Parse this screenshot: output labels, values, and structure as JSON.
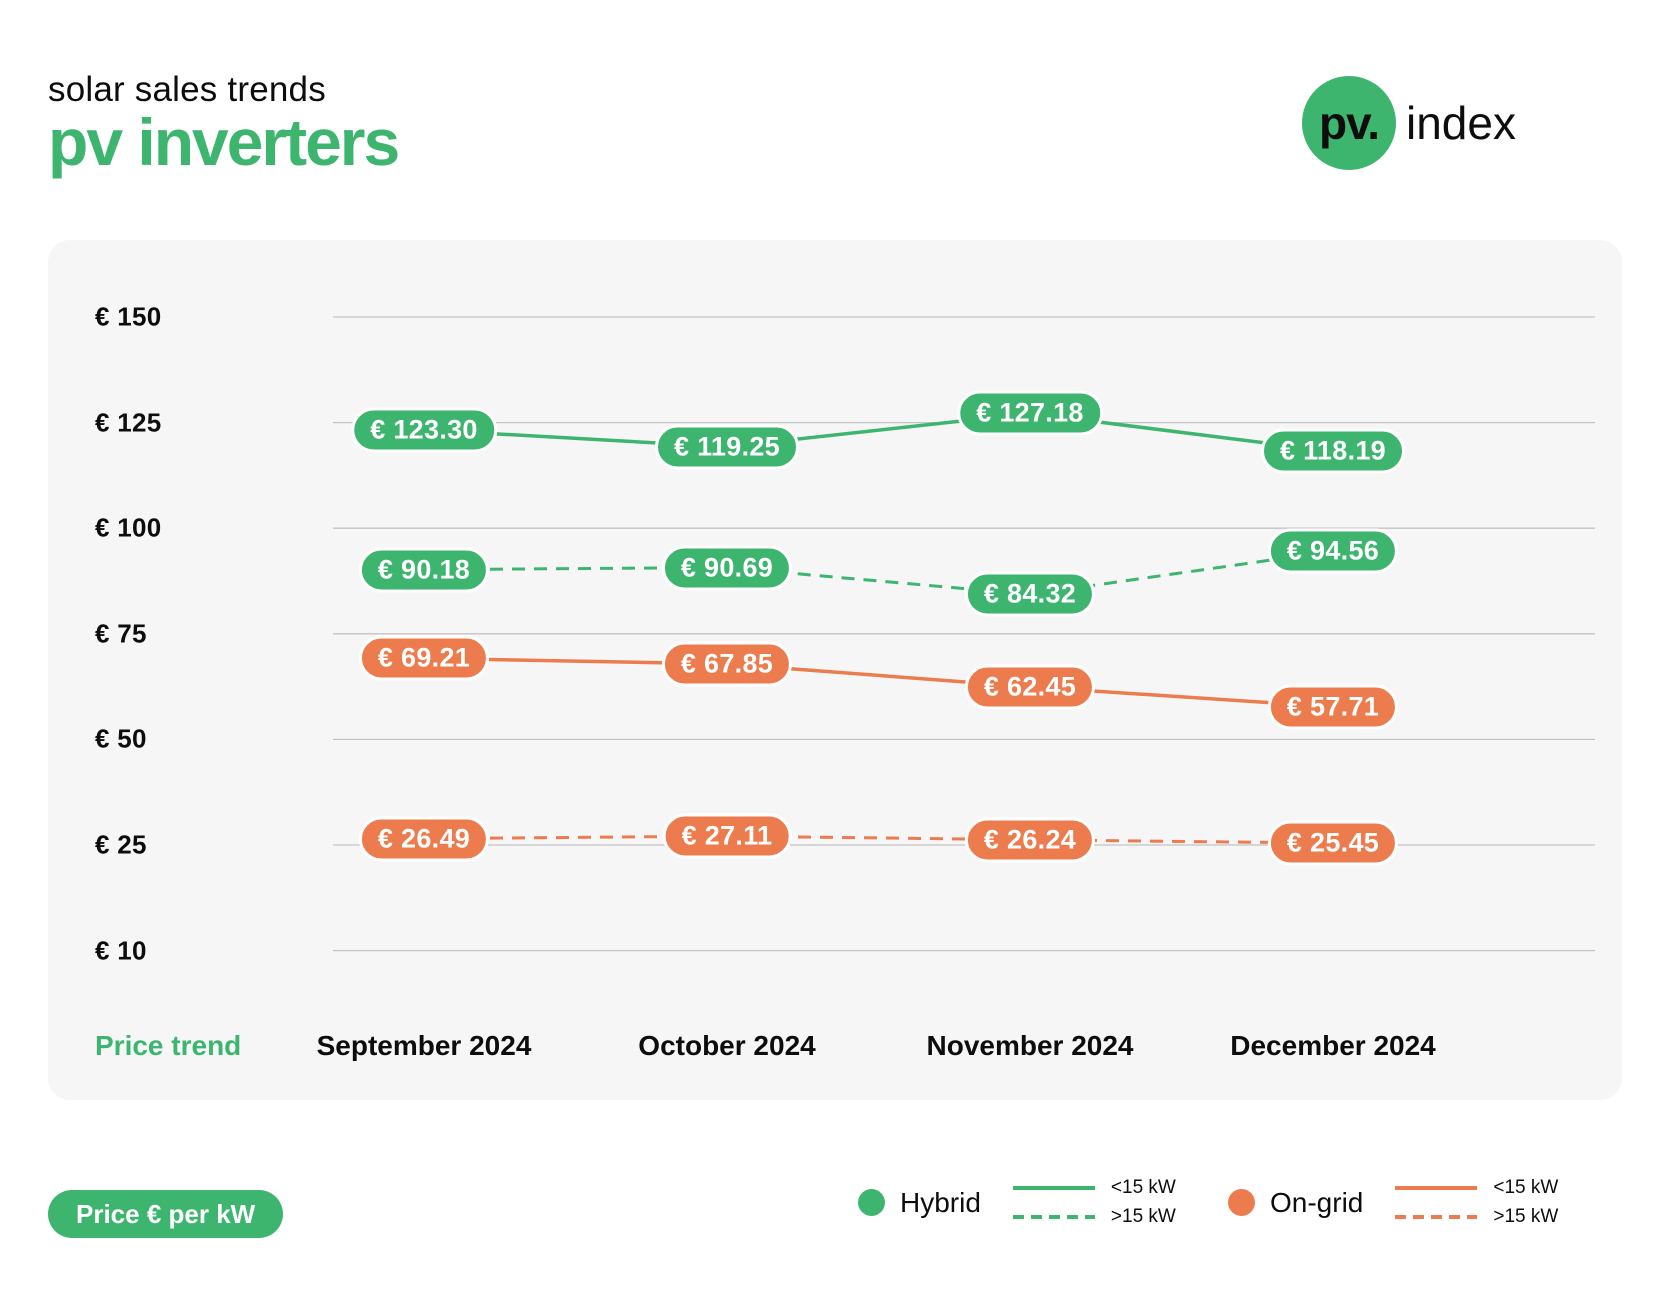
{
  "header": {
    "subtitle": "solar sales trends",
    "title": "pv inverters",
    "logo": {
      "circle_text": "pv.",
      "word": "index"
    }
  },
  "colors": {
    "green": "#3db56f",
    "orange": "#ec7c4d",
    "card_bg": "#f6f6f6",
    "grid": "#c4c4c4",
    "text": "#0d0d0d"
  },
  "chart_data": {
    "type": "line",
    "title": "solar sales trends — pv inverters",
    "x_axis_caption": "Price trend",
    "x_categories": [
      "September 2024",
      "October 2024",
      "November 2024",
      "December 2024"
    ],
    "y_ticks": [
      "€ 150",
      "€ 125",
      "€ 100",
      "€ 75",
      "€ 50",
      "€ 25",
      "€ 10"
    ],
    "y_tick_values": [
      150,
      125,
      100,
      75,
      50,
      25,
      10
    ],
    "ylim": [
      10,
      150
    ],
    "grid": true,
    "unit": "Price € per kW",
    "legend_position": "bottom",
    "series": [
      {
        "name": "Hybrid <15 kW",
        "group": "Hybrid",
        "variant": "<15 kW",
        "style": "solid",
        "color": "#3db56f",
        "values": [
          123.3,
          119.25,
          127.18,
          118.19
        ],
        "labels": [
          "€ 123.30",
          "€ 119.25",
          "€ 127.18",
          "€ 118.19"
        ]
      },
      {
        "name": "Hybrid >15 kW",
        "group": "Hybrid",
        "variant": ">15 kW",
        "style": "dashed",
        "color": "#3db56f",
        "values": [
          90.18,
          90.69,
          84.32,
          94.56
        ],
        "labels": [
          "€ 90.18",
          "€ 90.69",
          "€ 84.32",
          "€ 94.56"
        ]
      },
      {
        "name": "On-grid <15 kW",
        "group": "On-grid",
        "variant": "<15 kW",
        "style": "solid",
        "color": "#ec7c4d",
        "values": [
          69.21,
          67.85,
          62.45,
          57.71
        ],
        "labels": [
          "€ 69.21",
          "€ 67.85",
          "€ 62.45",
          "€ 57.71"
        ]
      },
      {
        "name": "On-grid >15 kW",
        "group": "On-grid",
        "variant": ">15 kW",
        "style": "dashed",
        "color": "#ec7c4d",
        "values": [
          26.49,
          27.11,
          26.24,
          25.45
        ],
        "labels": [
          "€ 26.49",
          "€ 27.11",
          "€ 26.24",
          "€ 25.45"
        ]
      }
    ]
  },
  "legend": {
    "unit_badge": "Price € per kW",
    "groups": [
      {
        "name": "Hybrid",
        "color": "#3db56f",
        "entries": [
          {
            "style": "solid",
            "label": "<15 kW"
          },
          {
            "style": "dashed",
            "label": ">15 kW"
          }
        ]
      },
      {
        "name": "On-grid",
        "color": "#ec7c4d",
        "entries": [
          {
            "style": "solid",
            "label": "<15 kW"
          },
          {
            "style": "dashed",
            "label": ">15 kW"
          }
        ]
      }
    ]
  }
}
